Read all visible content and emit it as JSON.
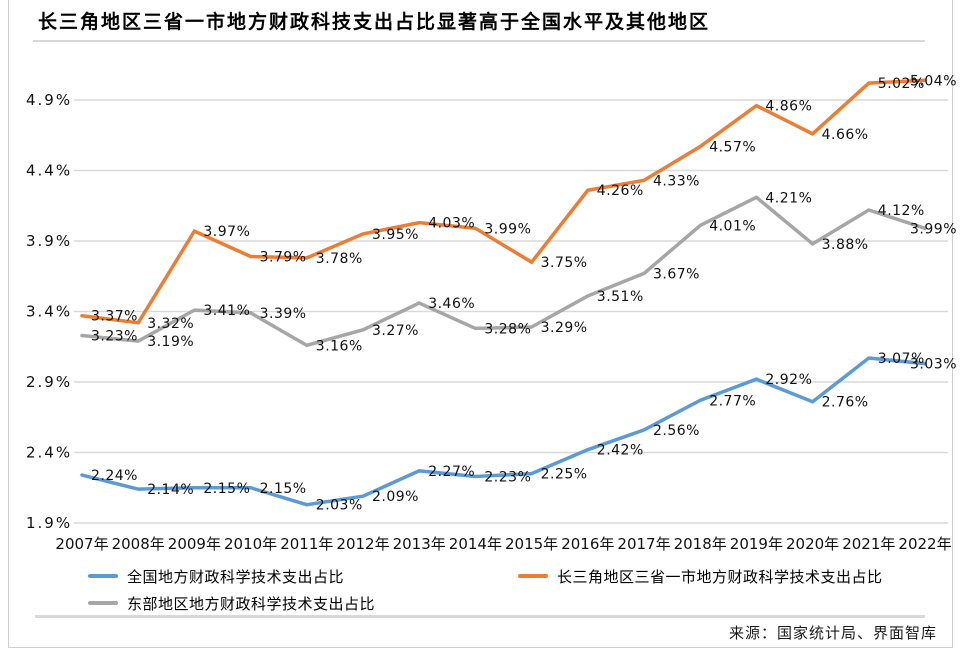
{
  "header": {
    "title": "长三角地区三省一市地方财政科技支出占比显著高于全国水平及其他地区"
  },
  "chart_data": {
    "type": "line",
    "categories": [
      "2007年",
      "2008年",
      "2009年",
      "2010年",
      "2011年",
      "2012年",
      "2013年",
      "2014年",
      "2015年",
      "2016年",
      "2017年",
      "2018年",
      "2019年",
      "2020年",
      "2021年",
      "2022年"
    ],
    "series": [
      {
        "name": "全国地方财政科学技术支出占比",
        "color": "#5B9BD5",
        "values": [
          2.24,
          2.14,
          2.15,
          2.15,
          2.03,
          2.09,
          2.27,
          2.23,
          2.25,
          2.42,
          2.56,
          2.77,
          2.92,
          2.76,
          3.07,
          3.03
        ]
      },
      {
        "name": "长三角地区三省一市地方财政科学技术支出占比",
        "color": "#ED7D31",
        "values": [
          3.37,
          3.32,
          3.97,
          3.79,
          3.78,
          3.95,
          4.03,
          3.99,
          3.75,
          4.26,
          4.33,
          4.57,
          4.86,
          4.66,
          5.02,
          5.04
        ]
      },
      {
        "name": "东部地区地方财政科学技术支出占比",
        "color": "#A6A6A6",
        "values": [
          3.23,
          3.19,
          3.41,
          3.39,
          3.16,
          3.27,
          3.46,
          3.28,
          3.29,
          3.51,
          3.67,
          4.01,
          4.21,
          3.88,
          4.12,
          3.99
        ]
      }
    ],
    "y_ticks": [
      "4.9%",
      "4.4%",
      "3.9%",
      "3.4%",
      "2.9%",
      "2.4%",
      "1.9%"
    ],
    "ylim": [
      1.9,
      4.9
    ],
    "grid": true,
    "data_labels": true,
    "label_suffix": "%",
    "legend_position": "bottom",
    "grid_color": "#d9d9d9",
    "text_color": "#111111"
  },
  "footer": {
    "source": "来源：国家统计局、界面智库"
  }
}
